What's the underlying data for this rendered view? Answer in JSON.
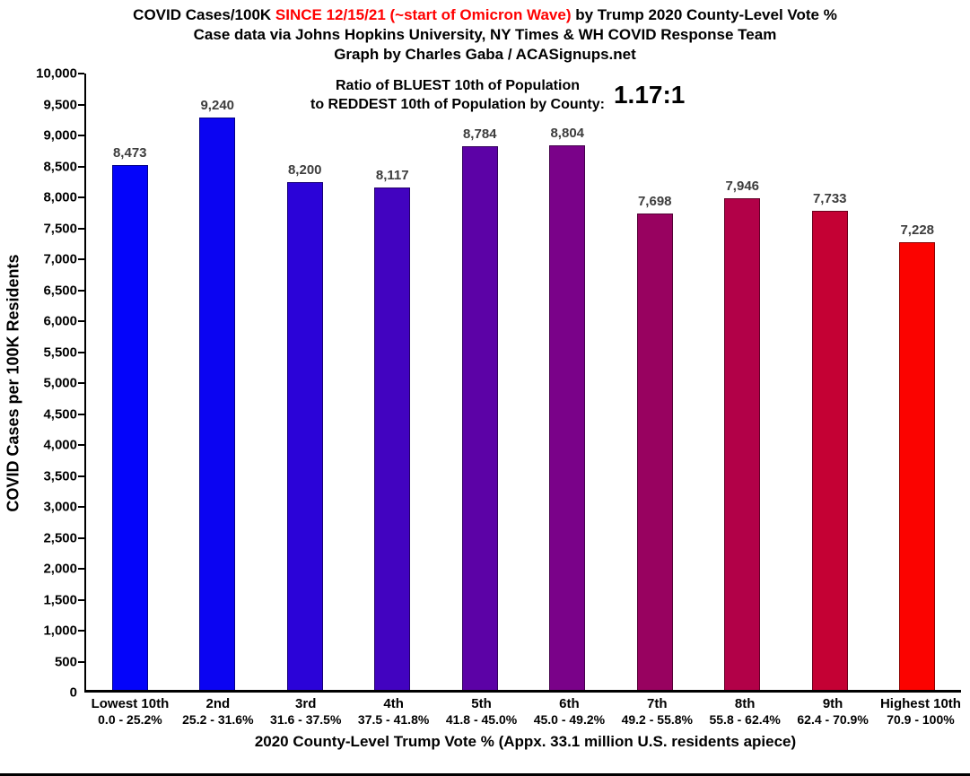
{
  "header": {
    "title_prefix": "COVID Cases/100K ",
    "title_highlight": "SINCE 12/15/21 (~start of Omicron Wave)",
    "title_suffix": " by Trump 2020 County-Level Vote %",
    "highlight_color": "#FF0000",
    "subtitle": "Case data via Johns Hopkins University, NY Times & WH COVID Response Team",
    "credit": "Graph by Charles Gaba / ACASignups.net"
  },
  "annotation": {
    "line1": "Ratio of BLUEST 10th of Population",
    "line2": "to REDDEST 10th of Population by County:",
    "ratio": "1.17:1"
  },
  "chart_data": {
    "type": "bar",
    "title": "COVID Cases/100K SINCE 12/15/21 (~start of Omicron Wave) by Trump 2020 County-Level Vote %",
    "xlabel": "2020 County-Level Trump Vote % (Appx. 33.1 million U.S. residents apiece)",
    "ylabel": "COVID Cases per 100K Residents",
    "ylim": [
      0,
      10000
    ],
    "ytick_step": 500,
    "yticks": [
      "0",
      "500",
      "1,000",
      "1,500",
      "2,000",
      "2,500",
      "3,000",
      "3,500",
      "4,000",
      "4,500",
      "5,000",
      "5,500",
      "6,000",
      "6,500",
      "7,000",
      "7,500",
      "8,000",
      "8,500",
      "9,000",
      "9,500",
      "10,000"
    ],
    "grid": false,
    "legend": "none",
    "categories": [
      "Lowest 10th",
      "2nd",
      "3rd",
      "4th",
      "5th",
      "6th",
      "7th",
      "8th",
      "9th",
      "Highest 10th"
    ],
    "category_ranges": [
      "0.0 - 25.2%",
      "25.2 - 31.6%",
      "31.6 - 37.5%",
      "37.5 - 41.8%",
      "41.8 - 45.0%",
      "45.0 - 49.2%",
      "49.2 - 55.8%",
      "55.8 - 62.4%",
      "62.4 - 70.9%",
      "70.9 - 100%"
    ],
    "values": [
      8473,
      9240,
      8200,
      8117,
      8784,
      8804,
      7698,
      7946,
      7733,
      7228
    ],
    "value_labels": [
      "8,473",
      "9,240",
      "8,200",
      "8,117",
      "8,784",
      "8,804",
      "7,698",
      "7,946",
      "7,733",
      "7,228"
    ],
    "bar_colors": [
      "#0404FA",
      "#0B04F2",
      "#2B03D8",
      "#4203C0",
      "#5C02A6",
      "#7A0289",
      "#980260",
      "#B20148",
      "#C40134",
      "#FB0300"
    ],
    "value_label_color": "#3d3d3d"
  }
}
